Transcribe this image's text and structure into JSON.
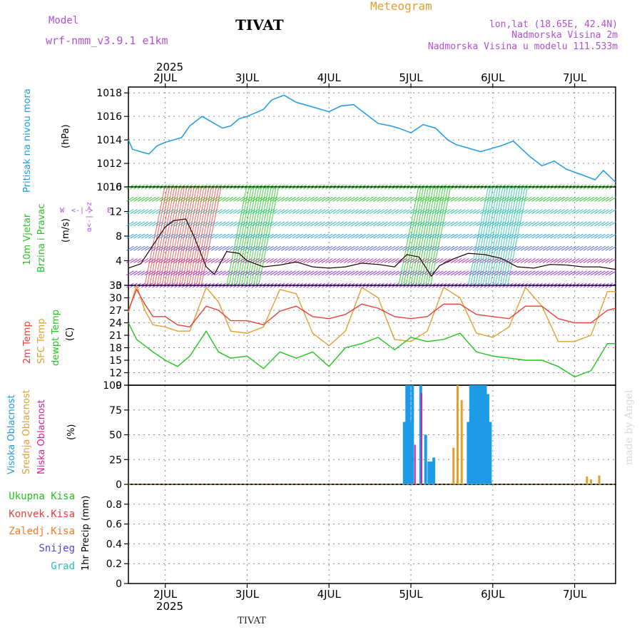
{
  "header": {
    "model_label": "Model",
    "model_name": "wrf-nmm_v3.9.1 e1km",
    "station": "TIVAT",
    "meteogram_label": "Meteogram",
    "lonlat": "lon,lat (18.65E, 42.4N)",
    "altitude": "Nadmorska Visina 2m",
    "model_altitude": "Nadmorska Visina u modelu 111.533m",
    "top_year": "2025",
    "bottom_year": "2025",
    "footer_station": "TIVAT",
    "credit": "made by Angel"
  },
  "colors": {
    "pressure": "#1e9be6",
    "temp2m": "#e8403a",
    "sfc_temp": "#e0a030",
    "dewpoint": "#22c51e",
    "high_cloud": "#1e9be6",
    "mid_cloud": "#e0a030",
    "low_cloud": "#e01e8c",
    "wind_line": "#000000",
    "grid": "#888888"
  },
  "wind_legend": {
    "title": "10m Vjetar",
    "subtitle": "Brzina i Pravac",
    "unit": "(m/s)",
    "compass_n": "N",
    "compass_w": "W",
    "compass_e": "E",
    "compass_s": "S",
    "compass_top": "α<-|->z",
    "compass_bottom": "α<-|->z"
  },
  "chart_data": [
    {
      "type": "line",
      "panel": "pressure",
      "ylabel_left": "Pritisak na nivou mora",
      "ylabel_unit": "(hPa)",
      "x_ticks": [
        "2JUL",
        "3JUL",
        "4JUL",
        "5JUL",
        "6JUL",
        "7JUL"
      ],
      "ylim": [
        1010,
        1018.5
      ],
      "yticks": [
        1010,
        1012,
        1014,
        1016,
        1018
      ],
      "series": [
        {
          "x": [
            1.55,
            1.6,
            1.7,
            1.8,
            1.9,
            2.0,
            2.2,
            2.3,
            2.45,
            2.55,
            2.7,
            2.8,
            2.9,
            3.0,
            3.2,
            3.3,
            3.45,
            3.6,
            3.8,
            4.0,
            4.15,
            4.3,
            4.45,
            4.6,
            4.75,
            4.85,
            5.0,
            5.15,
            5.3,
            5.45,
            5.55,
            5.7,
            5.85,
            5.95,
            6.1,
            6.25,
            6.45,
            6.6,
            6.75,
            6.9,
            7.1,
            7.25,
            7.35,
            7.5
          ],
          "values": [
            1014.0,
            1013.2,
            1013.0,
            1012.8,
            1013.5,
            1013.8,
            1014.2,
            1015.2,
            1016.0,
            1015.6,
            1015.0,
            1015.2,
            1015.8,
            1016.0,
            1016.6,
            1017.4,
            1017.8,
            1017.2,
            1016.8,
            1016.4,
            1016.9,
            1017.0,
            1016.2,
            1015.4,
            1015.2,
            1015.0,
            1014.6,
            1015.3,
            1015.0,
            1014.0,
            1013.6,
            1013.3,
            1013.0,
            1013.2,
            1013.5,
            1013.9,
            1012.6,
            1011.8,
            1012.2,
            1011.5,
            1011.0,
            1010.6,
            1011.4,
            1010.4
          ]
        }
      ]
    },
    {
      "type": "wind",
      "panel": "wind",
      "ylim": [
        0,
        16
      ],
      "yticks": [
        0,
        4,
        8,
        12,
        16
      ],
      "ylabel": "10m Vjetar Brzina i Pravac",
      "ylabel_unit": "(m/s)",
      "series": [
        {
          "name": "speed",
          "x": [
            1.55,
            1.7,
            1.85,
            2.0,
            2.1,
            2.25,
            2.35,
            2.5,
            2.6,
            2.75,
            2.9,
            3.0,
            3.2,
            3.4,
            3.6,
            3.8,
            4.0,
            4.2,
            4.4,
            4.6,
            4.8,
            4.95,
            5.1,
            5.25,
            5.35,
            5.5,
            5.7,
            5.9,
            6.1,
            6.3,
            6.5,
            6.7,
            6.9,
            7.1,
            7.3,
            7.5
          ],
          "values": [
            2.8,
            3.5,
            6.5,
            9.5,
            10.5,
            10.8,
            8.0,
            3.0,
            1.8,
            5.5,
            5.2,
            4.0,
            3.0,
            3.3,
            3.8,
            3.0,
            2.8,
            3.0,
            3.6,
            3.4,
            3.0,
            5.0,
            4.6,
            1.5,
            3.2,
            4.2,
            5.2,
            5.0,
            4.4,
            3.0,
            2.8,
            3.4,
            3.3,
            3.0,
            3.0,
            2.6
          ]
        }
      ],
      "barb_speed_rows": [
        0,
        2,
        4,
        6,
        8,
        10,
        12,
        14,
        16
      ]
    },
    {
      "type": "line",
      "panel": "temperature",
      "ylabels": [
        "2m Temp",
        "SFC Temp",
        "dewpt Temp"
      ],
      "ylabel_unit": "(C)",
      "ylim": [
        9,
        33
      ],
      "yticks": [
        9,
        12,
        15,
        18,
        21,
        24,
        27,
        30,
        33
      ],
      "series": [
        {
          "name": "2m Temp",
          "x": [
            1.55,
            1.65,
            1.75,
            1.85,
            2.0,
            2.15,
            2.3,
            2.5,
            2.65,
            2.8,
            3.0,
            3.2,
            3.4,
            3.6,
            3.8,
            4.0,
            4.2,
            4.4,
            4.6,
            4.8,
            5.0,
            5.2,
            5.4,
            5.6,
            5.8,
            6.0,
            6.2,
            6.4,
            6.6,
            6.8,
            7.0,
            7.2,
            7.4,
            7.5
          ],
          "values": [
            27.0,
            32.0,
            28.5,
            25.5,
            25.5,
            23.5,
            23.0,
            28.0,
            27.0,
            24.5,
            24.5,
            23.5,
            26.8,
            28.0,
            25.5,
            25.0,
            26.0,
            28.5,
            27.5,
            25.5,
            25.0,
            25.5,
            28.5,
            28.5,
            26.0,
            25.5,
            25.0,
            28.0,
            28.0,
            25.0,
            24.0,
            24.0,
            27.0,
            27.5
          ]
        },
        {
          "name": "SFC Temp",
          "x": [
            1.55,
            1.65,
            1.75,
            1.85,
            2.0,
            2.15,
            2.3,
            2.5,
            2.65,
            2.8,
            3.0,
            3.2,
            3.4,
            3.6,
            3.8,
            4.0,
            4.2,
            4.4,
            4.6,
            4.8,
            5.0,
            5.2,
            5.4,
            5.6,
            5.8,
            6.0,
            6.2,
            6.4,
            6.6,
            6.8,
            7.0,
            7.2,
            7.4,
            7.5
          ],
          "values": [
            26.5,
            33.0,
            27.0,
            23.5,
            23.0,
            22.0,
            22.0,
            32.5,
            29.0,
            22.0,
            21.5,
            23.0,
            32.0,
            31.0,
            21.5,
            18.5,
            22.0,
            32.5,
            30.0,
            20.0,
            19.5,
            22.0,
            32.5,
            30.0,
            21.5,
            20.5,
            23.0,
            32.5,
            28.0,
            19.5,
            19.5,
            21.0,
            31.5,
            31.5
          ]
        },
        {
          "name": "dewpt Temp",
          "x": [
            1.55,
            1.65,
            1.75,
            1.85,
            2.0,
            2.15,
            2.3,
            2.5,
            2.65,
            2.8,
            3.0,
            3.2,
            3.4,
            3.6,
            3.8,
            4.0,
            4.2,
            4.4,
            4.6,
            4.8,
            5.0,
            5.2,
            5.4,
            5.6,
            5.8,
            6.0,
            6.2,
            6.4,
            6.6,
            6.8,
            7.0,
            7.2,
            7.4,
            7.5
          ],
          "values": [
            24.0,
            20.0,
            18.5,
            17.0,
            15.0,
            13.5,
            16.0,
            22.0,
            17.0,
            15.5,
            16.0,
            13.0,
            17.0,
            15.5,
            17.0,
            13.5,
            18.0,
            19.0,
            20.5,
            17.5,
            20.5,
            19.5,
            20.0,
            21.5,
            17.0,
            16.0,
            15.5,
            15.0,
            15.0,
            13.5,
            11.0,
            12.5,
            19.0,
            19.0
          ]
        }
      ]
    },
    {
      "type": "bar",
      "panel": "cloud",
      "ylabels": [
        "Visoka Oblacnost",
        "Srednja Oblacnost",
        "Niska Oblacnost"
      ],
      "ylabel_unit": "(%)",
      "ylim": [
        0,
        100
      ],
      "yticks": [
        0,
        25,
        50,
        75,
        100
      ],
      "series": [
        {
          "name": "Visoka Oblacnost",
          "x": [
            4.92,
            4.95,
            4.98,
            5.0,
            5.02,
            5.12,
            5.18,
            5.22,
            5.25,
            5.28,
            5.7,
            5.73,
            5.76,
            5.79,
            5.82,
            5.85,
            5.88,
            5.91,
            5.94,
            5.97
          ],
          "values": [
            63,
            100,
            100,
            63,
            100,
            100,
            50,
            23,
            23,
            27,
            63,
            100,
            100,
            100,
            100,
            100,
            100,
            100,
            91,
            63
          ]
        },
        {
          "name": "Srednja Oblacnost",
          "x": [
            5.52,
            5.57,
            5.62,
            7.15,
            7.2,
            7.3
          ],
          "values": [
            37,
            100,
            85,
            8,
            5,
            9
          ]
        },
        {
          "name": "Niska Oblacnost",
          "x": [
            5.05,
            5.13
          ],
          "values": [
            40,
            92
          ]
        }
      ]
    },
    {
      "type": "bar",
      "panel": "precip",
      "ylabel_unit": "1hr Precip (mm)",
      "legend": [
        "Ukupna Kisa",
        "Konvek.Kisa",
        "Zaledj.Kisa",
        "Snijeg",
        "Grad"
      ],
      "ylim": [
        0,
        1.0
      ],
      "yticks": [
        0,
        0.2,
        0.4,
        0.6,
        0.8
      ],
      "ytick_labels": [
        "0",
        "0.2",
        "0.4",
        "0.6",
        "0.8"
      ],
      "series": [
        {
          "name": "Ukupna Kisa",
          "values": []
        },
        {
          "name": "Konvek.Kisa",
          "values": []
        },
        {
          "name": "Zaledj.Kisa",
          "values": []
        },
        {
          "name": "Snijeg",
          "values": []
        },
        {
          "name": "Grad",
          "values": []
        }
      ]
    }
  ]
}
